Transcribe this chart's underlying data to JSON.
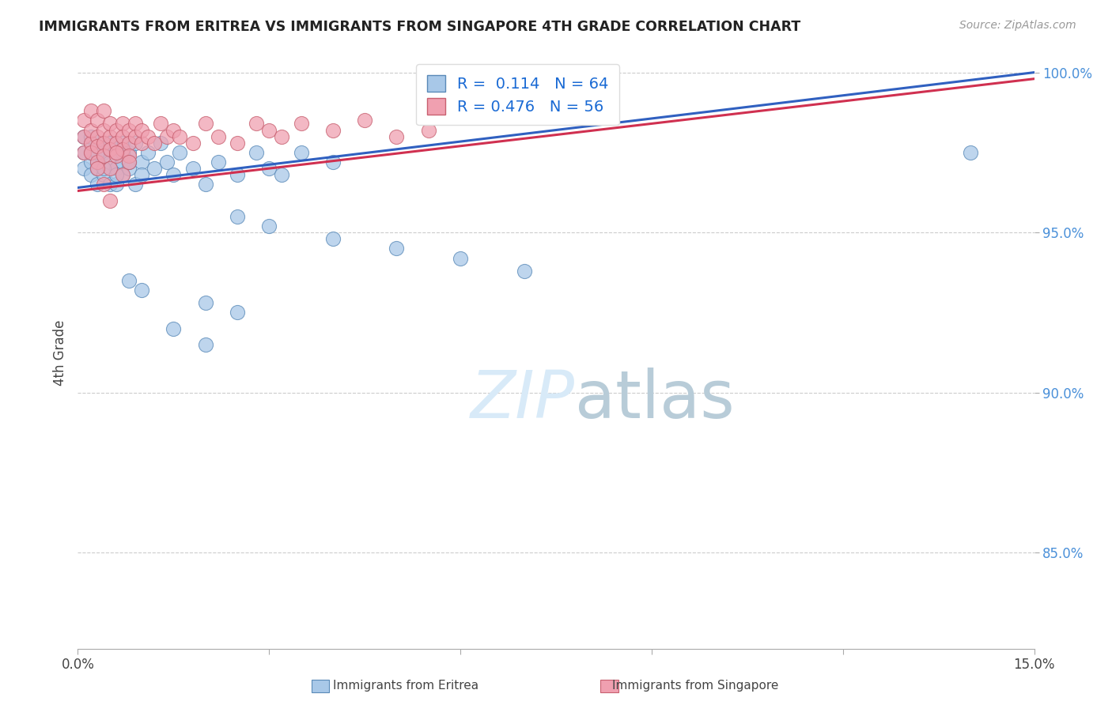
{
  "title": "IMMIGRANTS FROM ERITREA VS IMMIGRANTS FROM SINGAPORE 4TH GRADE CORRELATION CHART",
  "source_text": "Source: ZipAtlas.com",
  "ylabel": "4th Grade",
  "xlim": [
    0.0,
    0.15
  ],
  "ylim": [
    0.82,
    1.005
  ],
  "R_eritrea": 0.114,
  "N_eritrea": 64,
  "R_singapore": 0.476,
  "N_singapore": 56,
  "eritrea_color": "#a8c8e8",
  "eritrea_edge": "#5a8ab8",
  "singapore_color": "#f0a0b0",
  "singapore_edge": "#c86070",
  "line_eritrea_color": "#3060c0",
  "line_singapore_color": "#d03050",
  "background_color": "#ffffff",
  "watermark_color": "#d8eaf8",
  "eritrea_line_y0": 0.964,
  "eritrea_line_y1": 1.0,
  "singapore_line_y0": 0.963,
  "singapore_line_y1": 0.998,
  "eritrea_x": [
    0.001,
    0.001,
    0.001,
    0.002,
    0.002,
    0.002,
    0.002,
    0.003,
    0.003,
    0.003,
    0.003,
    0.004,
    0.004,
    0.004,
    0.005,
    0.005,
    0.005,
    0.006,
    0.006,
    0.006,
    0.007,
    0.007,
    0.007,
    0.008,
    0.008,
    0.009,
    0.009,
    0.01,
    0.01,
    0.011,
    0.012,
    0.013,
    0.014,
    0.015,
    0.016,
    0.018,
    0.02,
    0.022,
    0.025,
    0.028,
    0.03,
    0.032,
    0.035,
    0.04,
    0.025,
    0.03,
    0.04,
    0.05,
    0.06,
    0.07,
    0.008,
    0.01,
    0.02,
    0.025,
    0.015,
    0.02,
    0.14,
    0.002,
    0.003,
    0.004,
    0.005,
    0.006,
    0.007,
    0.008
  ],
  "eritrea_y": [
    0.975,
    0.97,
    0.98,
    0.972,
    0.978,
    0.968,
    0.975,
    0.97,
    0.977,
    0.965,
    0.972,
    0.978,
    0.968,
    0.975,
    0.972,
    0.965,
    0.978,
    0.97,
    0.975,
    0.965,
    0.978,
    0.972,
    0.968,
    0.975,
    0.97,
    0.978,
    0.965,
    0.972,
    0.968,
    0.975,
    0.97,
    0.978,
    0.972,
    0.968,
    0.975,
    0.97,
    0.965,
    0.972,
    0.968,
    0.975,
    0.97,
    0.968,
    0.975,
    0.972,
    0.955,
    0.952,
    0.948,
    0.945,
    0.942,
    0.938,
    0.935,
    0.932,
    0.928,
    0.925,
    0.92,
    0.915,
    0.975,
    0.98,
    0.975,
    0.97,
    0.978,
    0.968,
    0.975,
    0.972
  ],
  "singapore_x": [
    0.001,
    0.001,
    0.001,
    0.002,
    0.002,
    0.002,
    0.002,
    0.003,
    0.003,
    0.003,
    0.003,
    0.004,
    0.004,
    0.004,
    0.004,
    0.005,
    0.005,
    0.005,
    0.005,
    0.006,
    0.006,
    0.006,
    0.007,
    0.007,
    0.007,
    0.008,
    0.008,
    0.008,
    0.009,
    0.009,
    0.01,
    0.01,
    0.011,
    0.012,
    0.013,
    0.014,
    0.015,
    0.016,
    0.018,
    0.02,
    0.022,
    0.025,
    0.028,
    0.03,
    0.032,
    0.035,
    0.04,
    0.045,
    0.05,
    0.055,
    0.003,
    0.004,
    0.005,
    0.006,
    0.007,
    0.008
  ],
  "singapore_y": [
    0.98,
    0.975,
    0.985,
    0.978,
    0.982,
    0.975,
    0.988,
    0.98,
    0.977,
    0.985,
    0.972,
    0.982,
    0.978,
    0.974,
    0.988,
    0.98,
    0.976,
    0.984,
    0.97,
    0.982,
    0.978,
    0.974,
    0.984,
    0.98,
    0.976,
    0.982,
    0.978,
    0.974,
    0.984,
    0.98,
    0.978,
    0.982,
    0.98,
    0.978,
    0.984,
    0.98,
    0.982,
    0.98,
    0.978,
    0.984,
    0.98,
    0.978,
    0.984,
    0.982,
    0.98,
    0.984,
    0.982,
    0.985,
    0.98,
    0.982,
    0.97,
    0.965,
    0.96,
    0.975,
    0.968,
    0.972
  ]
}
